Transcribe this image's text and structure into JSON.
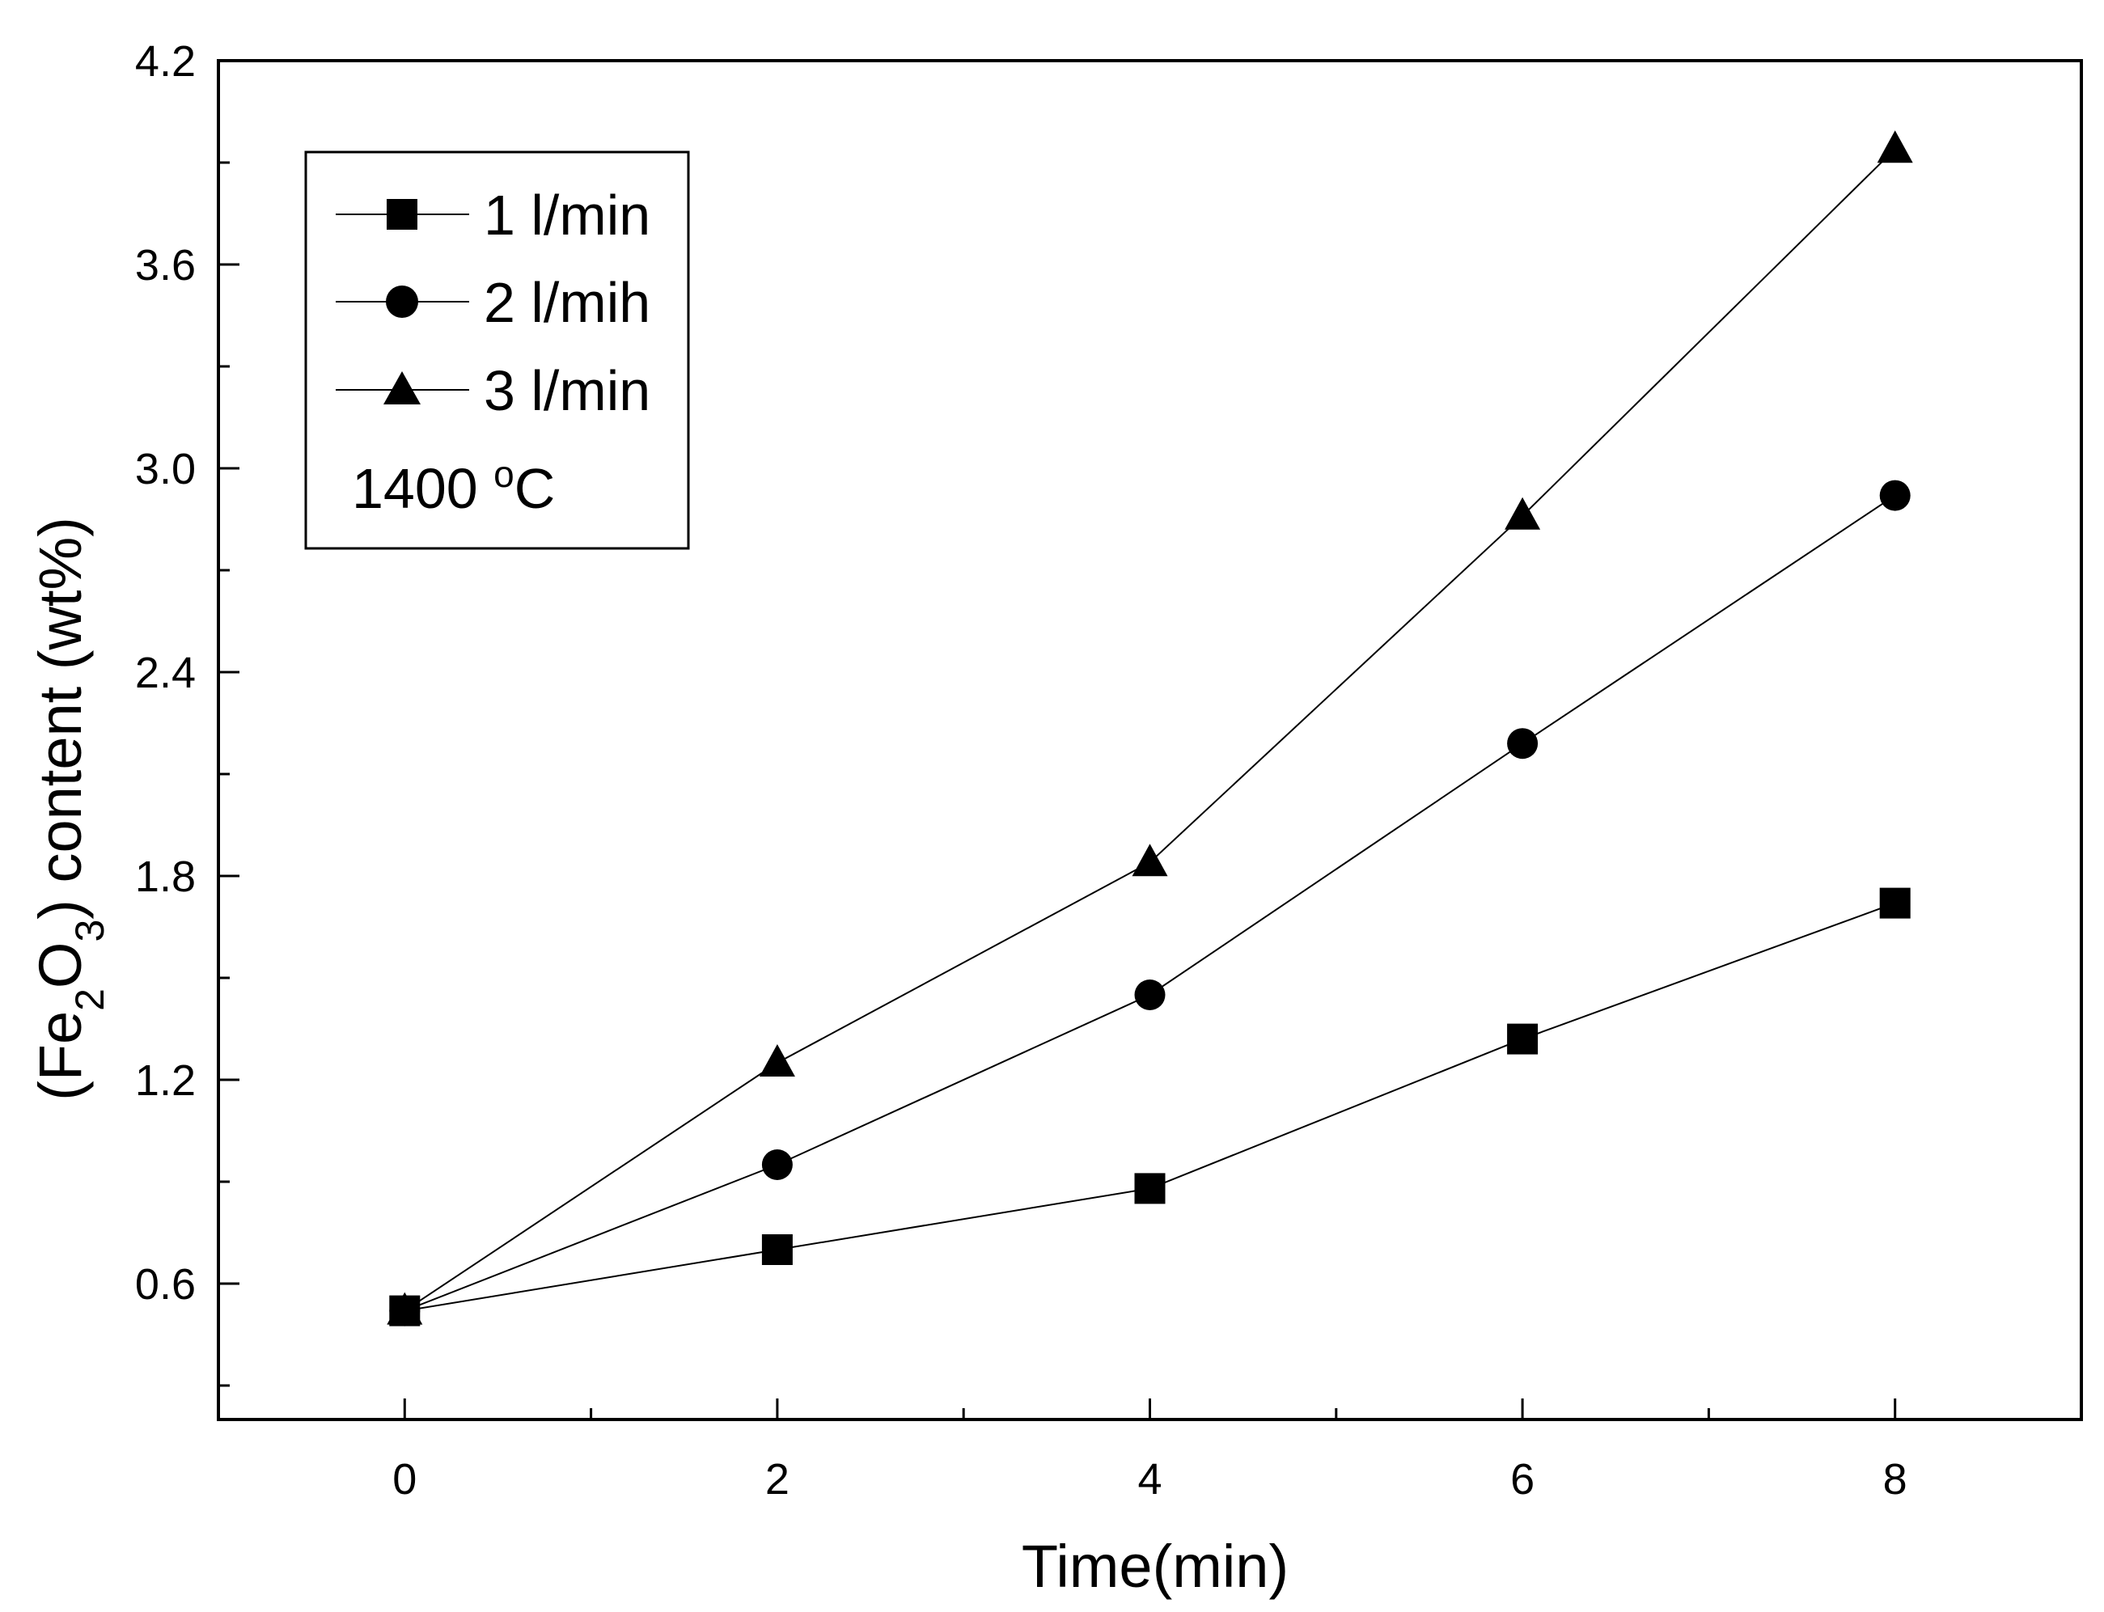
{
  "chart_data": {
    "type": "line",
    "xlabel": "Time(min)",
    "ylabel_parts": {
      "open": "(Fe",
      "sub1": "2",
      "mid": "O",
      "sub2": "3",
      "close": ") content (wt%)"
    },
    "xlim": [
      -1,
      9
    ],
    "ylim": [
      0.2,
      4.2
    ],
    "x_ticks": [
      0,
      2,
      4,
      6,
      8
    ],
    "x_tick_labels": [
      "0",
      "2",
      "4",
      "6",
      "8"
    ],
    "x_minor_ticks": [
      1,
      3,
      5,
      7
    ],
    "y_ticks": [
      0.6,
      1.2,
      1.8,
      2.4,
      3.0,
      3.6,
      4.2
    ],
    "y_tick_labels": [
      "0.6",
      "1.2",
      "1.8",
      "2.4",
      "3.0",
      "3.6",
      "4.2"
    ],
    "y_minor_ticks": [
      0.3,
      0.9,
      1.5,
      2.1,
      2.7,
      3.3,
      3.9
    ],
    "x": [
      0,
      2,
      4,
      6,
      8
    ],
    "series": [
      {
        "name": "1 l/min",
        "marker": "square",
        "values": [
          0.52,
          0.7,
          0.88,
          1.32,
          1.72
        ]
      },
      {
        "name": "2 l/mih",
        "marker": "circle",
        "values": [
          0.52,
          0.95,
          1.45,
          2.19,
          2.92
        ]
      },
      {
        "name": "3 l/min",
        "marker": "triangle",
        "values": [
          0.52,
          1.25,
          1.84,
          2.86,
          3.94
        ]
      }
    ],
    "annotation": {
      "value": "1400 ",
      "degree": "o",
      "unit": "C"
    },
    "legend_position": "top-left"
  }
}
